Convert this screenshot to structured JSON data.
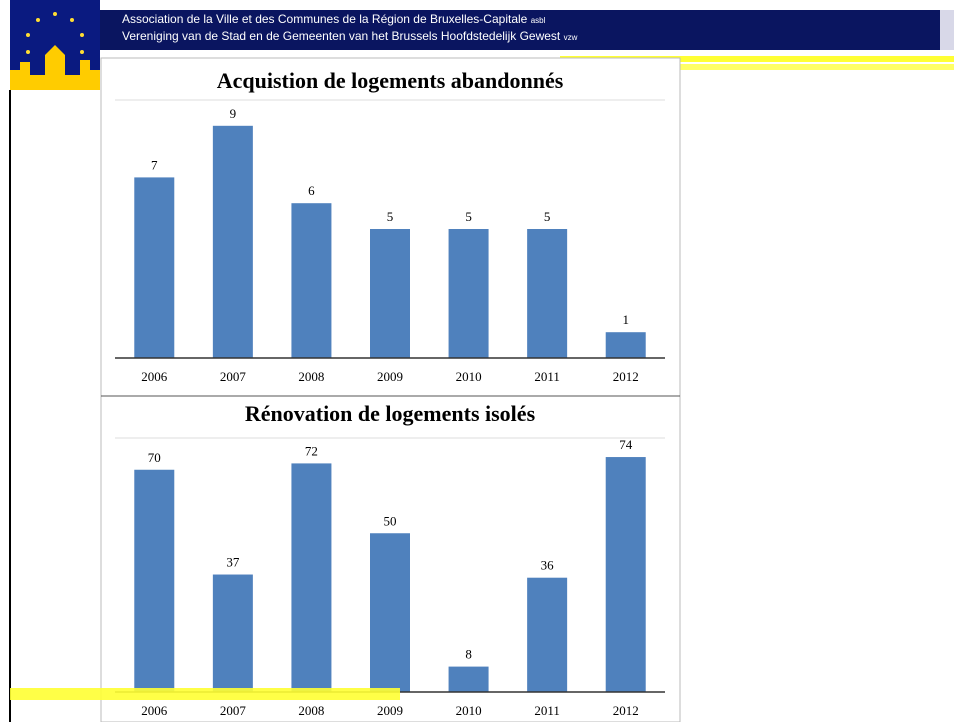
{
  "header": {
    "line1": "Association de la Ville et des Communes de la Région de Bruxelles-Capitale",
    "line1_suffix": "asbl",
    "line2": "Vereniging van de Stad en de Gemeenten van het Brussels Hoofdstedelijk Gewest",
    "line2_suffix": "vzw"
  },
  "chart_data": [
    {
      "type": "bar",
      "title": "Acquistion de logements abandonnés",
      "categories": [
        "2006",
        "2007",
        "2008",
        "2009",
        "2010",
        "2011",
        "2012"
      ],
      "values": [
        7,
        9,
        6,
        5,
        5,
        5,
        1
      ],
      "color": "#4f81bd",
      "ylim": [
        0,
        10
      ]
    },
    {
      "type": "bar",
      "title": "Rénovation de logements isolés",
      "categories": [
        "2006",
        "2007",
        "2008",
        "2009",
        "2010",
        "2011",
        "2012"
      ],
      "values": [
        70,
        37,
        72,
        50,
        8,
        36,
        74
      ],
      "color": "#4f81bd",
      "ylim": [
        0,
        80
      ]
    }
  ]
}
